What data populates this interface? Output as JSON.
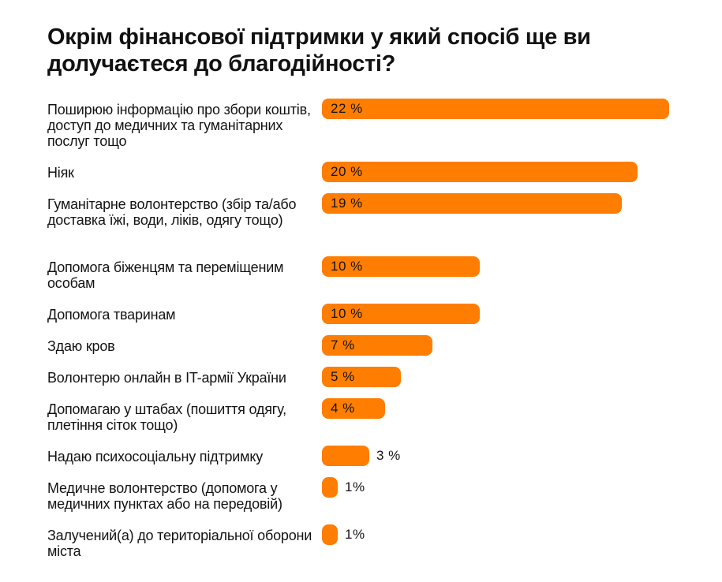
{
  "chart_data": {
    "type": "bar",
    "orientation": "horizontal",
    "title": "Окрім фінансової підтримки у який спосіб ще ви долучаєтеся до благодійності?",
    "unit": "%",
    "bar_color": "#FF7D00",
    "xlim": [
      0,
      22
    ],
    "categories": [
      "Поширюю інформацію про збори коштів, доступ до медичних та гуманітарних послуг тощо",
      "Ніяк",
      "Гуманітарне волонтерство (збір та/або доставка їжі, води, ліків, одягу тощо)",
      "Допомога біженцям та переміщеним особам",
      "Допомога тваринам",
      "Здаю кров",
      "Волонтерю онлайн в IT-армії України",
      "Допомагаю у штабах (пошиття одягу, плетіння сіток тощо)",
      "Надаю психосоціальну підтримку",
      "Медичне волонтерство (допомога у медичних пунктах або на передовій)",
      "Залучений(а) до територіальної оборони міста"
    ],
    "values": [
      22,
      20,
      19,
      10,
      10,
      7,
      5,
      4,
      3,
      1,
      1
    ],
    "value_labels": [
      "22 %",
      "20 %",
      "19 %",
      "10 %",
      "10 %",
      "7 %",
      "5 %",
      "4 %",
      "3 %",
      "1%",
      "1%"
    ]
  }
}
